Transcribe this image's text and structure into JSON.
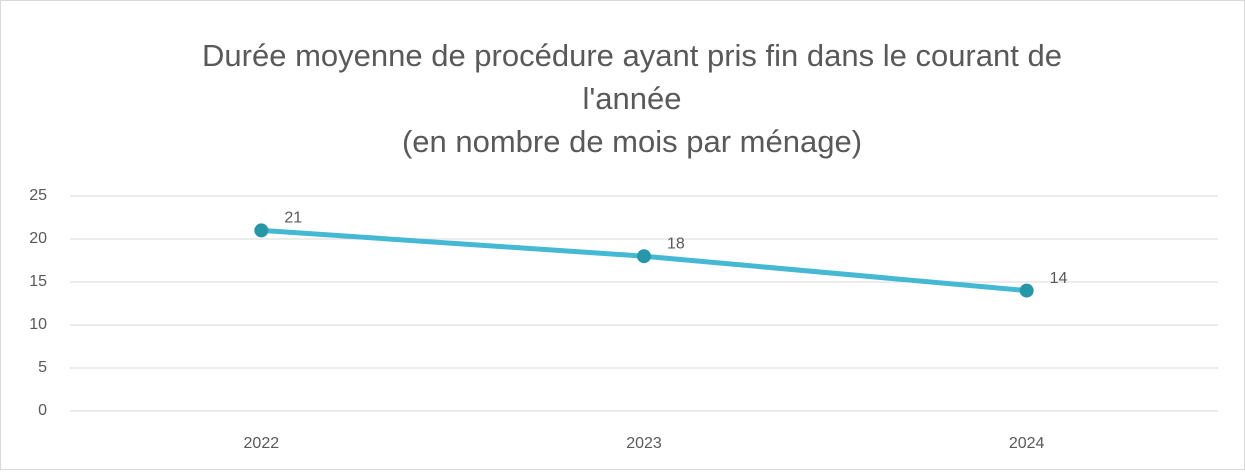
{
  "chart_data": {
    "type": "line",
    "title": [
      "Durée moyenne de procédure ayant pris fin dans le courant de",
      "l'année",
      "(en nombre de mois par ménage)"
    ],
    "categories": [
      "2022",
      "2023",
      "2024"
    ],
    "values": [
      21,
      18,
      14
    ],
    "color": "#45b9d3",
    "marker_color": "#2697a9",
    "ylim": [
      0,
      25
    ],
    "yticks": [
      0,
      5,
      10,
      15,
      20,
      25
    ],
    "grid": true
  }
}
